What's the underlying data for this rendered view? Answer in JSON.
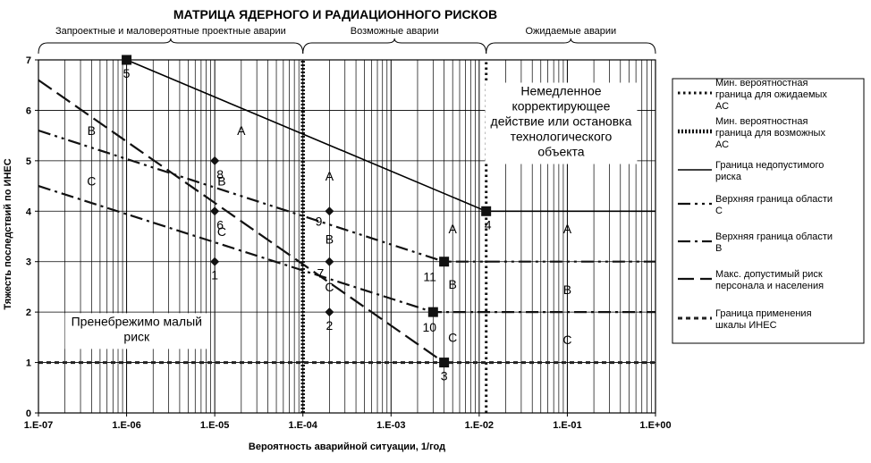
{
  "chart_data": {
    "type": "line",
    "title": "МАТРИЦА ЯДЕРНОГО И РАДИАЦИОННОГО РИСКОВ",
    "xlabel": "Вероятность аварийной ситуации, 1/год",
    "ylabel": "Тяжесть последствий по ИНЕС",
    "xscale": "log",
    "xlim": [
      1e-07,
      1
    ],
    "ylim": [
      0,
      7
    ],
    "x_tick_labels": [
      "1.E-07",
      "1.E-06",
      "1.E-05",
      "1.E-04",
      "1.E-03",
      "1.E-02",
      "1.E-01",
      "1.E+00"
    ],
    "y_tick_labels": [
      "0",
      "1",
      "2",
      "3",
      "4",
      "5",
      "6",
      "7"
    ],
    "grid": true,
    "legend_position": "right",
    "regions": [
      {
        "label": "Запроектные и маловероятные проектные аварии",
        "x_range": [
          1e-07,
          0.0001
        ]
      },
      {
        "label": "Возможные аварии",
        "x_range": [
          0.0001,
          0.012
        ]
      },
      {
        "label": "Ожидаемые аварии",
        "x_range": [
          0.012,
          1
        ]
      }
    ],
    "series": [
      {
        "name": "Мин. вероятностная граница для ожидаемых АС",
        "style": "dotted-thin",
        "x": [
          0.012,
          0.012
        ],
        "y": [
          0,
          7
        ]
      },
      {
        "name": "Мин. вероятностная граница для возможных АС",
        "style": "dotted-thick",
        "x": [
          0.0001,
          0.0001
        ],
        "y": [
          0,
          7
        ]
      },
      {
        "name": "Граница недопустимого риска",
        "style": "solid",
        "x": [
          1e-06,
          0.012,
          1
        ],
        "y": [
          7,
          4,
          4
        ]
      },
      {
        "name": "Верхняя граница области С",
        "style": "dash-dot-dot",
        "x": [
          1e-07,
          0.004,
          1
        ],
        "y": [
          5.6,
          3,
          3
        ]
      },
      {
        "name": "Верхняя граница области В",
        "style": "dash-dot",
        "x": [
          1e-07,
          0.003,
          1
        ],
        "y": [
          4.5,
          2,
          2
        ]
      },
      {
        "name": "Макс. допустимый риск персонала и населения",
        "style": "long-dash",
        "x": [
          1e-07,
          0.004
        ],
        "y": [
          6.6,
          1
        ]
      },
      {
        "name": "Граница применения шкалы ИНЕС",
        "style": "short-dash",
        "x": [
          1e-07,
          1
        ],
        "y": [
          1,
          1
        ]
      }
    ],
    "points": [
      {
        "label": "1",
        "x": 1e-05,
        "y": 3,
        "marker": "diamond"
      },
      {
        "label": "2",
        "x": 0.0002,
        "y": 2,
        "marker": "diamond"
      },
      {
        "label": "3",
        "x": 0.004,
        "y": 1,
        "marker": "square"
      },
      {
        "label": "4",
        "x": 0.012,
        "y": 4,
        "marker": "square"
      },
      {
        "label": "5",
        "x": 1e-06,
        "y": 7,
        "marker": "square"
      },
      {
        "label": "6",
        "x": 1e-05,
        "y": 4,
        "marker": "diamond"
      },
      {
        "label": "7",
        "x": 0.0002,
        "y": 3,
        "marker": "diamond"
      },
      {
        "label": "8",
        "x": 1e-05,
        "y": 5,
        "marker": "diamond"
      },
      {
        "label": "9",
        "x": 0.0002,
        "y": 4,
        "marker": "diamond"
      },
      {
        "label": "10",
        "x": 0.003,
        "y": 2,
        "marker": "square"
      },
      {
        "label": "11",
        "x": 0.004,
        "y": 3,
        "marker": "square"
      }
    ],
    "zone_labels": [
      {
        "text": "A",
        "x": 2e-05,
        "y": 5.6
      },
      {
        "text": "B",
        "x": 4e-07,
        "y": 5.6
      },
      {
        "text": "C",
        "x": 4e-07,
        "y": 4.6
      },
      {
        "text": "B",
        "x": 1.2e-05,
        "y": 4.6
      },
      {
        "text": "C",
        "x": 1.2e-05,
        "y": 3.6
      },
      {
        "text": "A",
        "x": 0.0002,
        "y": 4.7
      },
      {
        "text": "B",
        "x": 0.0002,
        "y": 3.45
      },
      {
        "text": "C",
        "x": 0.0002,
        "y": 2.5
      },
      {
        "text": "A",
        "x": 0.005,
        "y": 3.65
      },
      {
        "text": "B",
        "x": 0.005,
        "y": 2.55
      },
      {
        "text": "C",
        "x": 0.005,
        "y": 1.5
      },
      {
        "text": "A",
        "x": 0.1,
        "y": 3.65
      },
      {
        "text": "B",
        "x": 0.1,
        "y": 2.45
      },
      {
        "text": "C",
        "x": 0.1,
        "y": 1.45
      }
    ],
    "annotations": [
      {
        "lines": [
          "Немедленное",
          "корректирующее",
          "действие или остановка",
          "технологического",
          "объекта"
        ],
        "x": 0.085,
        "y": 6.3
      },
      {
        "lines": [
          "Пренебрежимо малый",
          "риск"
        ],
        "x": 1.3e-06,
        "y": 1.73
      }
    ]
  }
}
